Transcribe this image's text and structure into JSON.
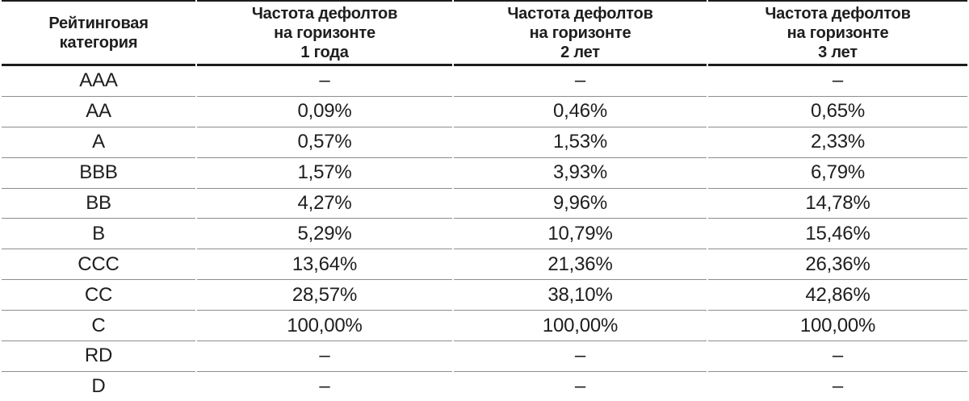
{
  "colors": {
    "background": "#ffffff",
    "text": "#1e1e1e",
    "thick_rule": "#1c1c1c",
    "thin_rule": "#8d8d8d"
  },
  "table": {
    "columns": [
      {
        "label": "Рейтинговая\nкатегория"
      },
      {
        "label": "Частота дефолтов\nна горизонте\n1 года"
      },
      {
        "label": "Частота дефолтов\nна горизонте\n2 лет"
      },
      {
        "label": "Частота дефолтов\nна горизонте\n3 лет"
      }
    ],
    "empty_value": "–",
    "rows": [
      {
        "category": "AAA",
        "values": [
          "–",
          "–",
          "–"
        ]
      },
      {
        "category": "AA",
        "values": [
          "0,09%",
          "0,46%",
          "0,65%"
        ]
      },
      {
        "category": "A",
        "values": [
          "0,57%",
          "1,53%",
          "2,33%"
        ]
      },
      {
        "category": "BBB",
        "values": [
          "1,57%",
          "3,93%",
          "6,79%"
        ]
      },
      {
        "category": "BB",
        "values": [
          "4,27%",
          "9,96%",
          "14,78%"
        ]
      },
      {
        "category": "B",
        "values": [
          "5,29%",
          "10,79%",
          "15,46%"
        ]
      },
      {
        "category": "CCC",
        "values": [
          "13,64%",
          "21,36%",
          "26,36%"
        ]
      },
      {
        "category": "CC",
        "values": [
          "28,57%",
          "38,10%",
          "42,86%"
        ]
      },
      {
        "category": "C",
        "values": [
          "100,00%",
          "100,00%",
          "100,00%"
        ]
      },
      {
        "category": "RD",
        "values": [
          "–",
          "–",
          "–"
        ]
      },
      {
        "category": "D",
        "values": [
          "–",
          "–",
          "–"
        ]
      }
    ]
  }
}
